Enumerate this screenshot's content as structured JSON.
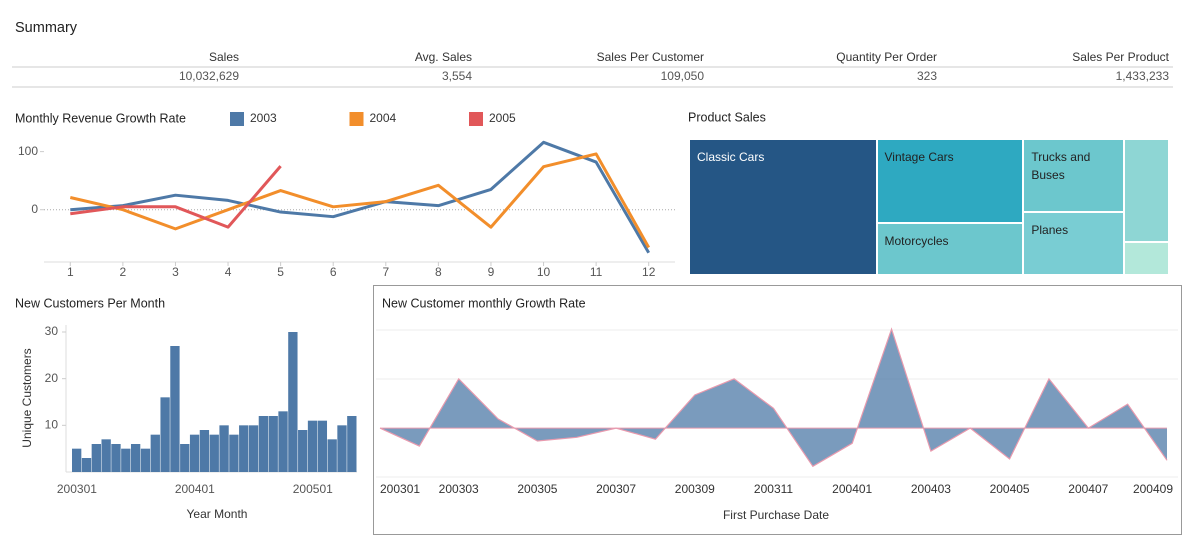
{
  "summary": {
    "title": "Summary",
    "columns": [
      "Sales",
      "Avg. Sales",
      "Sales Per Customer",
      "Quantity Per Order",
      "Sales Per Product"
    ],
    "values": [
      "10,032,629",
      "3,554",
      "109,050",
      "323",
      "1,433,233"
    ]
  },
  "chart_data": [
    {
      "type": "line",
      "title": "Monthly Revenue Growth Rate",
      "x": [
        1,
        2,
        3,
        4,
        5,
        6,
        7,
        8,
        9,
        10,
        11,
        12
      ],
      "xlim": [
        0.5,
        12.5
      ],
      "xticks": [
        1,
        2,
        3,
        4,
        5,
        6,
        7,
        8,
        9,
        10,
        11,
        12
      ],
      "ylim": [
        -90,
        120
      ],
      "yticks": [
        0,
        100
      ],
      "series": [
        {
          "name": "2003",
          "color": "#4e79a7",
          "values": [
            0,
            7,
            25,
            16,
            -4,
            -12,
            14,
            7,
            35,
            116,
            82,
            -74
          ]
        },
        {
          "name": "2004",
          "color": "#f28e2b",
          "values": [
            21,
            0,
            -33,
            0,
            33,
            5,
            14,
            42,
            -30,
            74,
            96,
            -65
          ]
        },
        {
          "name": "2005",
          "color": "#e15759",
          "values": [
            -7,
            5,
            5,
            -30,
            75,
            null,
            null,
            null,
            null,
            null,
            null,
            null
          ]
        }
      ]
    },
    {
      "type": "treemap",
      "title": "Product Sales",
      "categories": [
        "Classic Cars",
        "Vintage Cars",
        "Motorcycles",
        "Trucks and Buses",
        "Planes",
        null,
        null
      ],
      "values": [
        3919616,
        1903151,
        1166388,
        1127790,
        975004,
        714437,
        226243
      ],
      "colors": [
        "#255685",
        "#2ea9c1",
        "#6cc7cd",
        "#6cc7cd",
        "#79cdd3",
        "#8ed6d4",
        "#b3e8da"
      ]
    },
    {
      "type": "bar",
      "title": "New Customers Per Month",
      "xlabel": "Year Month",
      "ylabel": "Unique Customers",
      "categories": [
        "200301",
        null,
        null,
        null,
        null,
        null,
        null,
        null,
        null,
        null,
        null,
        null,
        "200401",
        null,
        null,
        null,
        null,
        null,
        null,
        null,
        null,
        null,
        null,
        null,
        "200501",
        null,
        null,
        null,
        null
      ],
      "values": [
        5,
        3,
        6,
        7,
        6,
        5,
        6,
        5,
        8,
        16,
        27,
        6,
        8,
        9,
        8,
        10,
        8,
        10,
        10,
        12,
        12,
        13,
        30,
        9,
        11,
        11,
        7,
        10,
        12
      ],
      "color": "#4e79a7",
      "ylim": [
        0,
        31.5
      ],
      "yticks": [
        10,
        20,
        30
      ]
    },
    {
      "type": "area",
      "title": "New Customer monthly Growth Rate",
      "xlabel": "First Purchase Date",
      "categories": [
        "200301",
        null,
        "200303",
        null,
        "200305",
        null,
        "200307",
        null,
        "200309",
        null,
        "200311",
        null,
        "200401",
        null,
        "200403",
        null,
        "200405",
        null,
        "200407",
        null,
        "200409"
      ],
      "values": [
        0,
        -39,
        107,
        20,
        -28,
        -20,
        0,
        -24,
        72,
        107,
        43,
        -83,
        -33,
        215,
        -50,
        0,
        -67,
        107,
        0,
        52,
        -70
      ],
      "color": "#4e79a7",
      "line_color": "#e89aae",
      "ylim": [
        -91,
        224
      ]
    }
  ]
}
